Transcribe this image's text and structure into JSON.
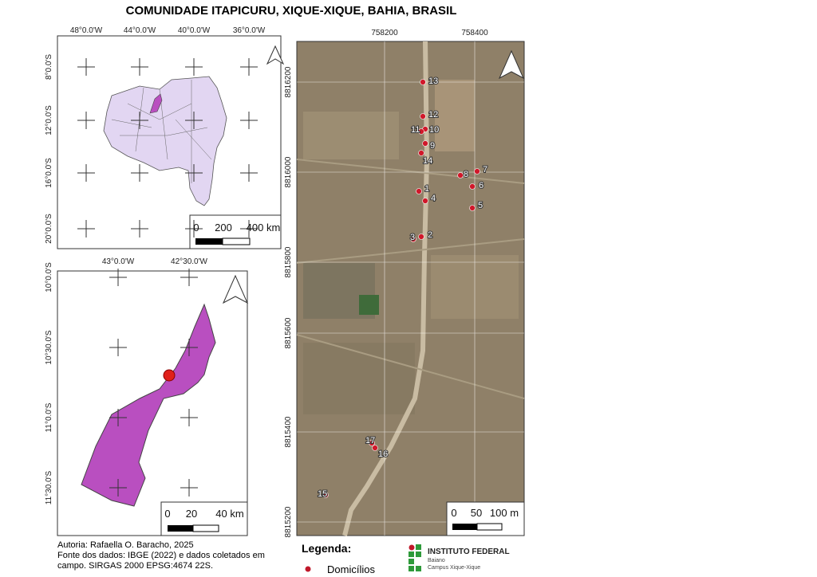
{
  "title": "COMUNIDADE ITAPICURU, XIQUE-XIQUE, BAHIA, BRASIL",
  "state_map": {
    "top_labels": [
      "48°0.0'W",
      "44°0.0'W",
      "40°0.0'W",
      "36°0.0'W"
    ],
    "left_labels": [
      "8°0.0'S",
      "12°0.0'S",
      "16°0.0'S",
      "20°0.0'S"
    ],
    "scale_labels": [
      "0",
      "200",
      "400 km"
    ]
  },
  "municipality_map": {
    "top_labels": [
      "43°0.0'W",
      "42°30.0'W"
    ],
    "left_labels": [
      "10°0.0'S",
      "10°30.0'S",
      "11°0.0'S",
      "11°30.0'S"
    ],
    "scale_labels": [
      "0",
      "20",
      "40 km"
    ]
  },
  "local_map": {
    "top_labels": [
      "758200",
      "758400"
    ],
    "left_labels": [
      "8816200",
      "8816000",
      "8815800",
      "8815600",
      "8815400",
      "8815200"
    ],
    "scale_labels": [
      "0",
      "50",
      "100 m"
    ],
    "points": [
      {
        "label": "1"
      },
      {
        "label": "2"
      },
      {
        "label": "3"
      },
      {
        "label": "4"
      },
      {
        "label": "5"
      },
      {
        "label": "6"
      },
      {
        "label": "7"
      },
      {
        "label": "8"
      },
      {
        "label": "9"
      },
      {
        "label": "10"
      },
      {
        "label": "11"
      },
      {
        "label": "12"
      },
      {
        "label": "13"
      },
      {
        "label": "14"
      },
      {
        "label": "15"
      },
      {
        "label": "16"
      },
      {
        "label": "17"
      }
    ]
  },
  "credits": [
    "Autoria: Rafaella O. Baracho, 2025",
    "Fonte dos dados: IBGE (2022) e dados coletados em",
    "campo. SIRGAS 2000 EPSG:4674 22S."
  ],
  "legend": {
    "title": "Legenda:",
    "items": [
      "Domicílios"
    ]
  },
  "logo": {
    "name": "INSTITUTO FEDERAL",
    "sub": "Baiano",
    "campus": "Campus Xique-Xique"
  }
}
